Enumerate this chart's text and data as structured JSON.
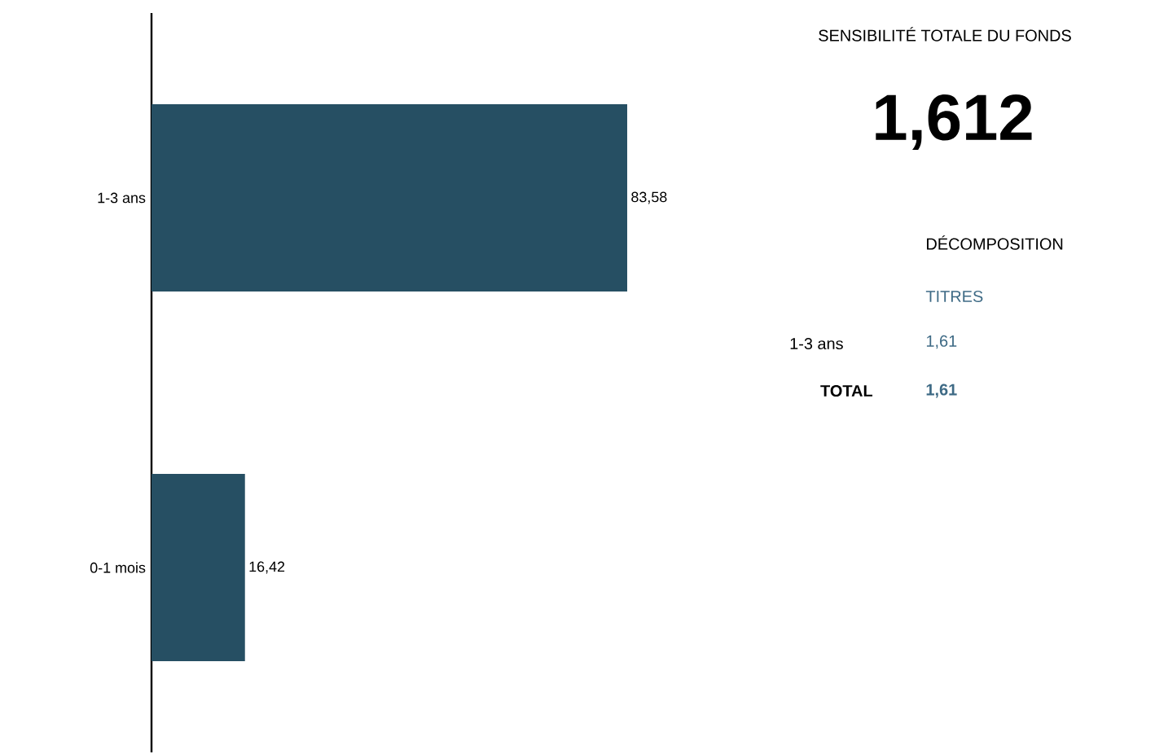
{
  "chart_data": [
    {
      "type": "bar",
      "orientation": "horizontal",
      "categories": [
        "1-3 ans",
        "0-1 mois"
      ],
      "values": [
        83.58,
        16.42
      ],
      "value_labels": [
        "83,58",
        "16,42"
      ],
      "color": "#264f63",
      "tick_labels": "y"
    },
    {
      "type": "other",
      "title": "SENSIBILITÉ TOTALE DU FONDS",
      "annotations": [
        "1,612",
        "DÉCOMPOSITION",
        "TITRES",
        "1-3 ans",
        "1,61",
        "TOTAL",
        "1,61"
      ]
    }
  ]
}
